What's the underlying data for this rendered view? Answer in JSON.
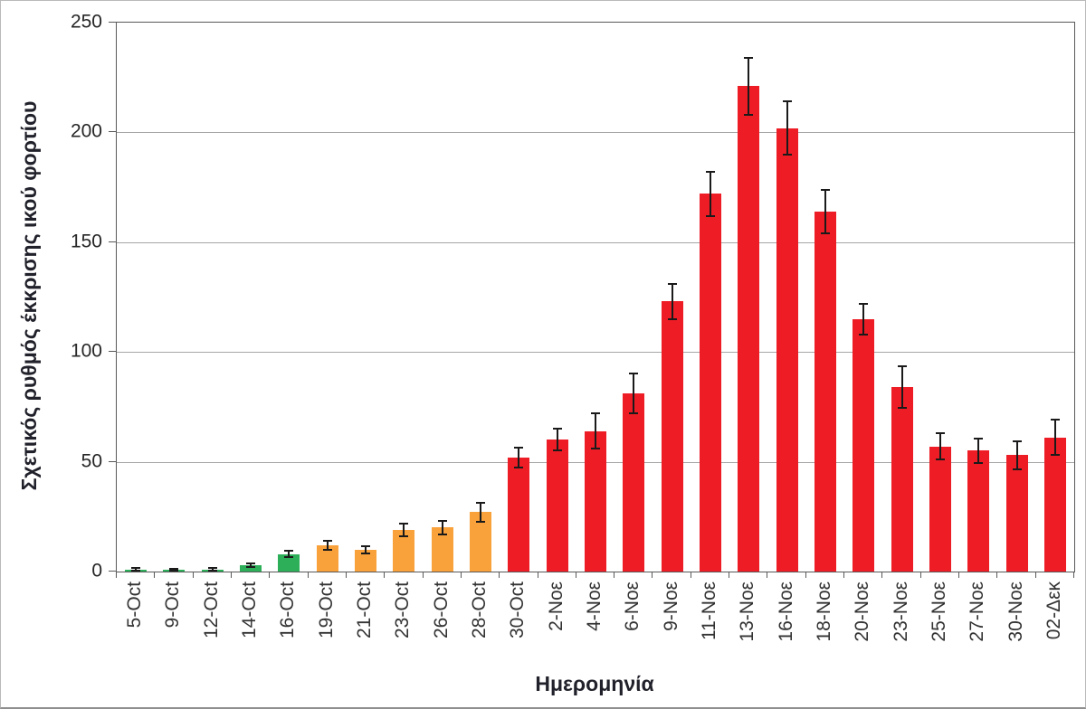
{
  "chart_data": {
    "type": "bar",
    "title": "",
    "xlabel": "Ημερομηνία",
    "ylabel": "Σχετικός ρυθμός έκκρισης ικού φορτίου",
    "categories": [
      "5-Oct",
      "9-Oct",
      "12-Oct",
      "14-Oct",
      "16-Oct",
      "19-Oct",
      "21-Oct",
      "23-Oct",
      "26-Oct",
      "28-Oct",
      "30-Oct",
      "2-Νοε",
      "4-Νοε",
      "6-Νοε",
      "9-Νοε",
      "11-Νοε",
      "13-Νοε",
      "16-Νοε",
      "18-Νοε",
      "20-Νοε",
      "23-Νοε",
      "25-Νοε",
      "27-Νοε",
      "30-Νοε",
      "02-Δεκ"
    ],
    "values": [
      1,
      0.8,
      1,
      3,
      8,
      12,
      10,
      19,
      20,
      27,
      52,
      60,
      64,
      81,
      123,
      172,
      221,
      202,
      164,
      115,
      84,
      57,
      55,
      53,
      61
    ],
    "errors": [
      0.5,
      0.4,
      0.5,
      0.8,
      1.5,
      2,
      1.7,
      3,
      3,
      4.5,
      4.5,
      5,
      8,
      9,
      8,
      10,
      13,
      12,
      10,
      7,
      9.5,
      6,
      5.5,
      6.5,
      8
    ],
    "bar_colors": [
      "#2DAF5A",
      "#2DAF5A",
      "#2DAF5A",
      "#2DAF5A",
      "#2DAF5A",
      "#F9A13B",
      "#F9A13B",
      "#F9A13B",
      "#F9A13B",
      "#F9A13B",
      "#EE1C25",
      "#EE1C25",
      "#EE1C25",
      "#EE1C25",
      "#EE1C25",
      "#EE1C25",
      "#EE1C25",
      "#EE1C25",
      "#EE1C25",
      "#EE1C25",
      "#EE1C25",
      "#EE1C25",
      "#EE1C25",
      "#EE1C25",
      "#EE1C25"
    ],
    "palette": {
      "green": "#2DAF5A",
      "orange": "#F9A13B",
      "red": "#EE1C25"
    },
    "error_bar_color": "#1a1a1a",
    "gridline_color": "#a6a6a6",
    "axis_color": "#595959",
    "ylim": [
      0,
      250
    ],
    "yticks": [
      0,
      50,
      100,
      150,
      200,
      250
    ],
    "grid": "horizontal",
    "legend": "none",
    "x_label_rotation": "vertical-bottom-to-top"
  }
}
